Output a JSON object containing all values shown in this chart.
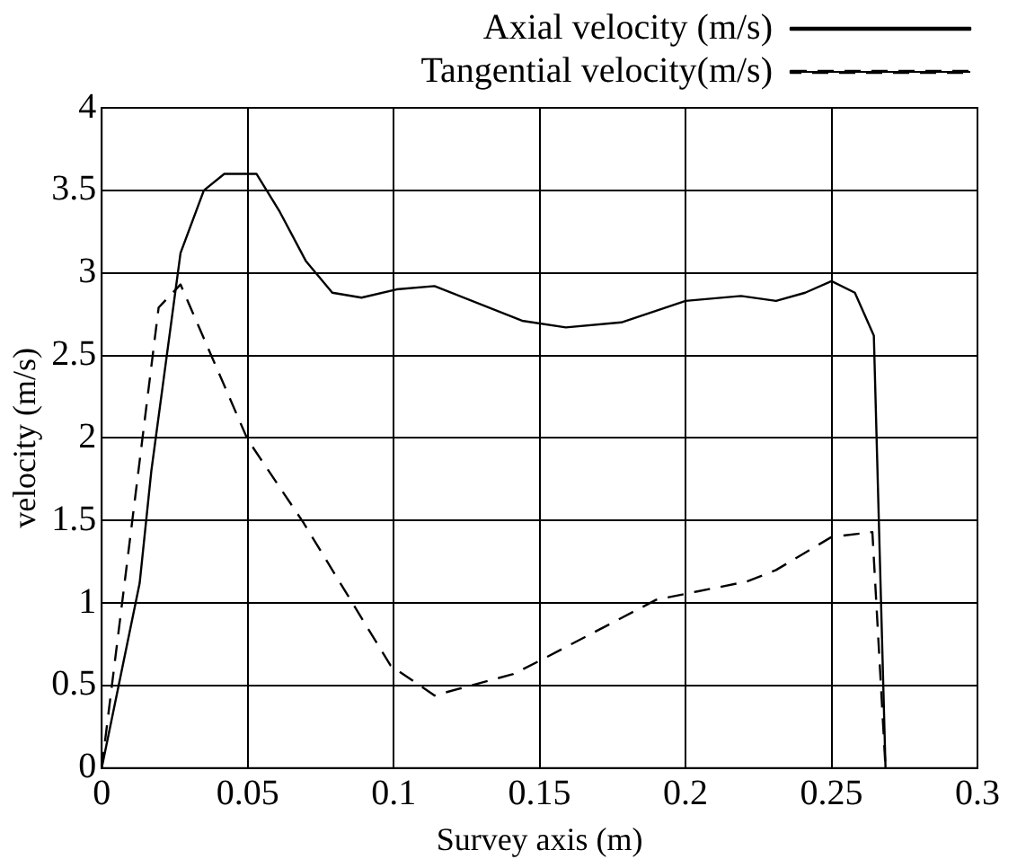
{
  "chart_data": {
    "type": "line",
    "xlabel": "Survey axis (m)",
    "ylabel": "velocity (m/s)",
    "xlim": [
      0,
      0.3
    ],
    "xticks": [
      0,
      0.05,
      0.1,
      0.15,
      0.2,
      0.25,
      0.3
    ],
    "ylim": [
      0,
      4
    ],
    "yticks": [
      0,
      0.5,
      1,
      1.5,
      2,
      2.5,
      3,
      3.5,
      4
    ],
    "grid": true,
    "legend": "top right",
    "marker": "none",
    "series": [
      {
        "name": "Axial velocity (m/s)",
        "color": "#000000",
        "line_style": "solid",
        "x": [
          0,
          0.013,
          0.017,
          0.027,
          0.035,
          0.042,
          0.053,
          0.061,
          0.07,
          0.079,
          0.089,
          0.101,
          0.114,
          0.144,
          0.159,
          0.178,
          0.2,
          0.219,
          0.231,
          0.241,
          0.25,
          0.258,
          0.2645,
          0.2685
        ],
        "values": [
          0,
          1.12,
          1.8,
          3.12,
          3.5,
          3.6,
          3.6,
          3.37,
          3.07,
          2.88,
          2.85,
          2.9,
          2.92,
          2.71,
          2.67,
          2.7,
          2.83,
          2.86,
          2.83,
          2.88,
          2.95,
          2.88,
          2.62,
          0
        ]
      },
      {
        "name": "Tangential velocity(m/s)",
        "color": "#000000",
        "line_style": "dashed",
        "x": [
          0,
          0.0195,
          0.027,
          0.05,
          0.069,
          0.099,
          0.114,
          0.141,
          0.15,
          0.19,
          0.204,
          0.221,
          0.231,
          0.25,
          0.264,
          0.2685
        ],
        "values": [
          0,
          2.79,
          2.93,
          1.99,
          1.49,
          0.62,
          0.44,
          0.57,
          0.65,
          1.02,
          1.07,
          1.13,
          1.2,
          1.4,
          1.43,
          0
        ]
      }
    ]
  }
}
